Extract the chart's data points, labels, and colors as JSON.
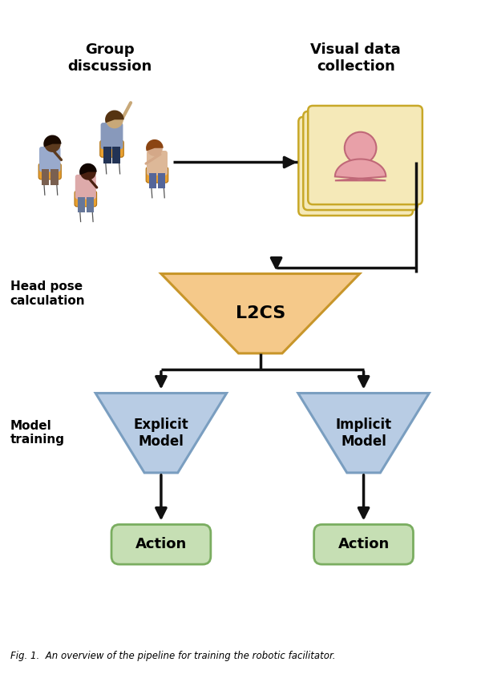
{
  "background_color": "#ffffff",
  "labels": {
    "group_discussion": "Group\ndiscussion",
    "visual_data": "Visual data\ncollection",
    "head_pose": "Head pose\ncalculation",
    "model_training": "Model\ntraining",
    "l2cs": "L2CS",
    "explicit_model": "Explicit\nModel",
    "implicit_model": "Implicit\nModel",
    "action": "Action"
  },
  "colors": {
    "l2cs_fill": "#F5C98A",
    "l2cs_edge": "#C8962A",
    "model_fill": "#B8CCE4",
    "model_edge": "#7A9EC0",
    "action_fill": "#C6DFB4",
    "action_edge": "#7AAD60",
    "card_fill": "#F5E9B8",
    "card_edge": "#C8A828",
    "face_fill": "#E8A0A8",
    "face_edge": "#C06878",
    "arrow_color": "#111111",
    "chair_color": "#E8A030",
    "chair_edge": "#B07010"
  },
  "figure_caption": "Fig. 1.  An overview of the pipeline for training the robotic facilitator.",
  "layout": {
    "fig_w": 6.0,
    "fig_h": 8.46,
    "dpi": 100,
    "xlim": [
      0,
      6
    ],
    "ylim": [
      0,
      8.46
    ]
  }
}
